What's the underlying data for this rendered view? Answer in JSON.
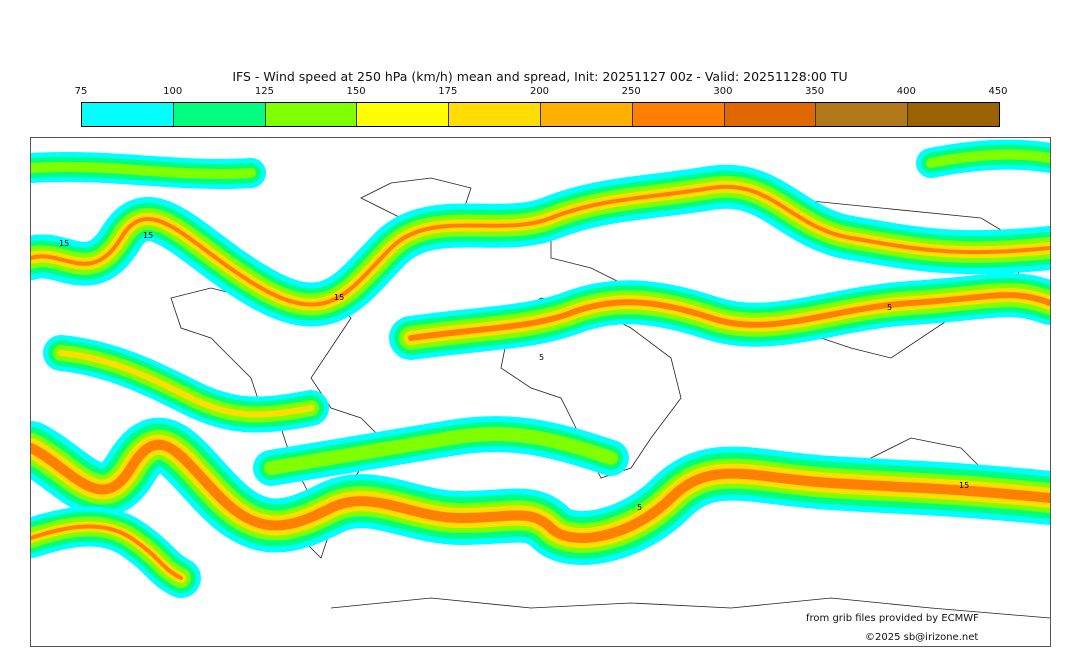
{
  "title": "IFS - Wind speed at 250 hPa (km/h) mean and spread, Init: 20251127 00z - Valid: 20251128:00 TU",
  "colorbar": {
    "labels": [
      "75",
      "100",
      "125",
      "150",
      "175",
      "200",
      "250",
      "300",
      "350",
      "400",
      "450"
    ],
    "colors": [
      "#00ffff",
      "#00ff80",
      "#80ff00",
      "#ffff00",
      "#ffdd00",
      "#ffb000",
      "#ff8000",
      "#e06800",
      "#b07818",
      "#9a6200"
    ]
  },
  "contour_labels": [
    "15",
    "15",
    "15",
    "5",
    "5",
    "5",
    "15"
  ],
  "credits": {
    "source": "from grib files provided by ECMWF",
    "copyright": "©2025 sb@irizone.net"
  }
}
